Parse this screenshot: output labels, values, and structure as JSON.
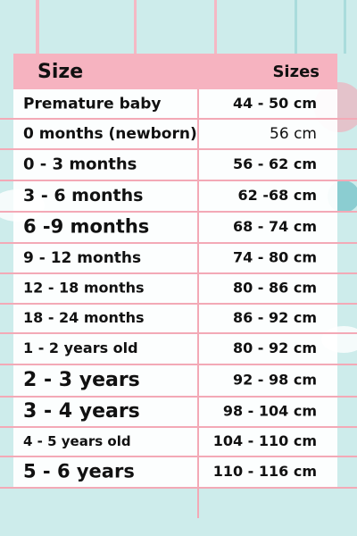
{
  "table": {
    "header": [
      "Size",
      "Sizes"
    ],
    "rows": [
      [
        "Premature baby",
        "44 - 50 cm"
      ],
      [
        "0 months (newborn)",
        "56 cm"
      ],
      [
        "0 - 3 months",
        "56 - 62 cm"
      ],
      [
        "3 - 6 months",
        "62 -68 cm"
      ],
      [
        "6 -9 months",
        "68 - 74 cm"
      ],
      [
        "9 - 12 months",
        "74 - 80 cm"
      ],
      [
        "12 - 18 months",
        "80 - 86 cm"
      ],
      [
        "18 - 24 months",
        "86 - 92 cm"
      ],
      [
        "1 - 2 years old",
        "80 - 92 cm"
      ],
      [
        "2 - 3 years",
        "92 - 98 cm"
      ],
      [
        "3 - 4 years",
        "98 - 104 cm"
      ],
      [
        "4 - 5 years old",
        "104 - 110 cm"
      ],
      [
        "5 - 6 years",
        "110 - 116 cm"
      ]
    ]
  }
}
